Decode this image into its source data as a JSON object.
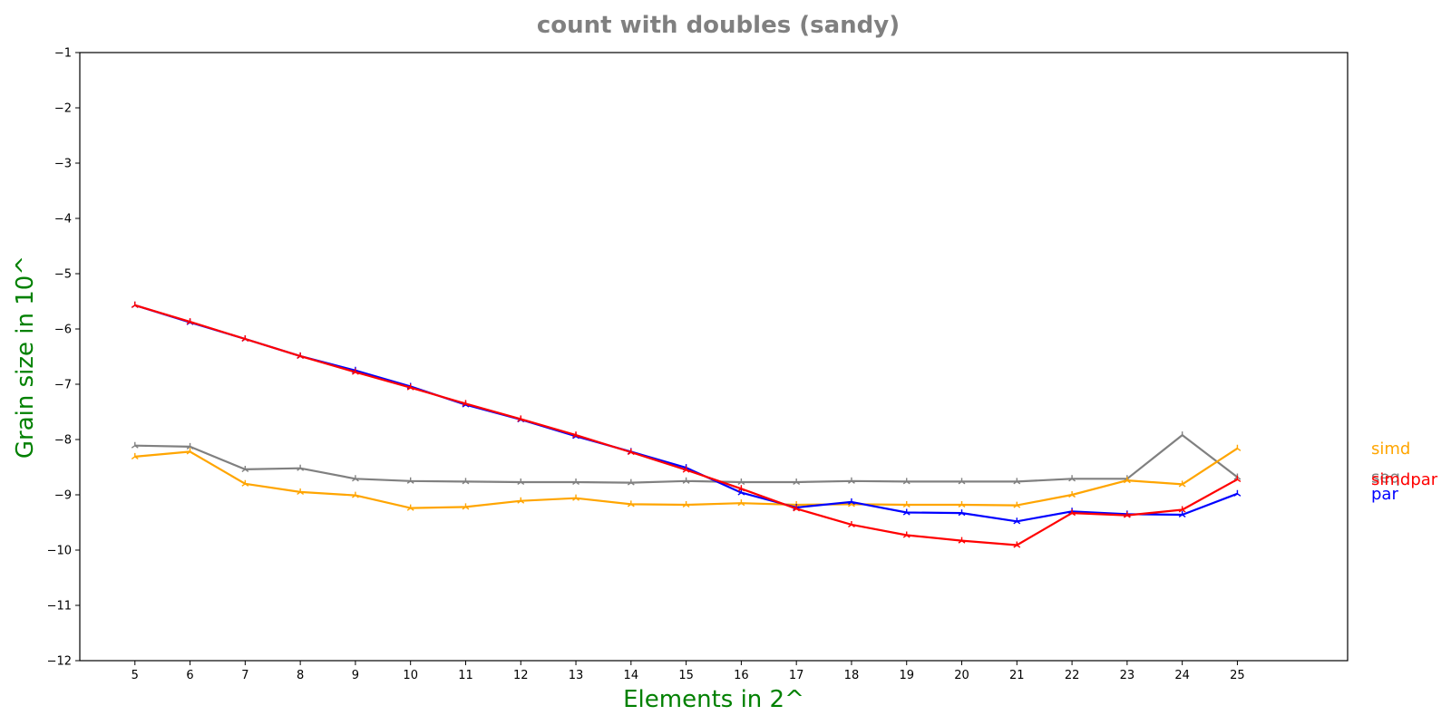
{
  "chart_data": {
    "type": "line",
    "title": "count with doubles  (sandy)",
    "xlabel": "Elements in 2^",
    "ylabel": "Grain size in 10^",
    "label_color": "#008000",
    "title_color": "#808080",
    "x": [
      5,
      6,
      7,
      8,
      9,
      10,
      11,
      12,
      13,
      14,
      15,
      16,
      17,
      18,
      19,
      20,
      21,
      22,
      23,
      24,
      25
    ],
    "xticks": [
      "5",
      "6",
      "7",
      "8",
      "9",
      "10",
      "11",
      "12",
      "13",
      "14",
      "15",
      "16",
      "17",
      "18",
      "19",
      "20",
      "21",
      "22",
      "23",
      "24",
      "25"
    ],
    "xlim": [
      4,
      27
    ],
    "ylim": [
      -12,
      -1
    ],
    "yticks": [
      "−1",
      "−2",
      "−3",
      "−4",
      "−5",
      "−6",
      "−7",
      "−8",
      "−9",
      "−10",
      "−11",
      "−12"
    ],
    "ytick_values": [
      -1,
      -2,
      -3,
      -4,
      -5,
      -6,
      -7,
      -8,
      -9,
      -10,
      -11,
      -12
    ],
    "grid": false,
    "legend": "right, labels at line ends",
    "series": [
      {
        "name": "seq",
        "color": "#808080",
        "values": [
          -8.11,
          -8.13,
          -8.54,
          -8.52,
          -8.71,
          -8.75,
          -8.76,
          -8.77,
          -8.77,
          -8.78,
          -8.75,
          -8.77,
          -8.77,
          -8.75,
          -8.76,
          -8.76,
          -8.76,
          -8.71,
          -8.71,
          -7.92,
          -8.68
        ]
      },
      {
        "name": "simd",
        "color": "#ffa500",
        "values": [
          -8.31,
          -8.22,
          -8.8,
          -8.95,
          -9.01,
          -9.24,
          -9.22,
          -9.11,
          -9.06,
          -9.17,
          -9.18,
          -9.15,
          -9.18,
          -9.17,
          -9.18,
          -9.18,
          -9.19,
          -9.0,
          -8.74,
          -8.81,
          -8.16
        ]
      },
      {
        "name": "par",
        "color": "#0000ff",
        "values": [
          -5.57,
          -5.88,
          -6.18,
          -6.49,
          -6.75,
          -7.04,
          -7.37,
          -7.64,
          -7.94,
          -8.22,
          -8.51,
          -8.96,
          -9.23,
          -9.13,
          -9.32,
          -9.33,
          -9.48,
          -9.3,
          -9.35,
          -9.36,
          -8.98
        ]
      },
      {
        "name": "simdpar",
        "color": "#ff0000",
        "values": [
          -5.57,
          -5.87,
          -6.18,
          -6.49,
          -6.78,
          -7.06,
          -7.35,
          -7.63,
          -7.92,
          -8.23,
          -8.55,
          -8.89,
          -9.25,
          -9.54,
          -9.73,
          -9.83,
          -9.91,
          -9.33,
          -9.37,
          -9.27,
          -8.72
        ]
      }
    ]
  }
}
